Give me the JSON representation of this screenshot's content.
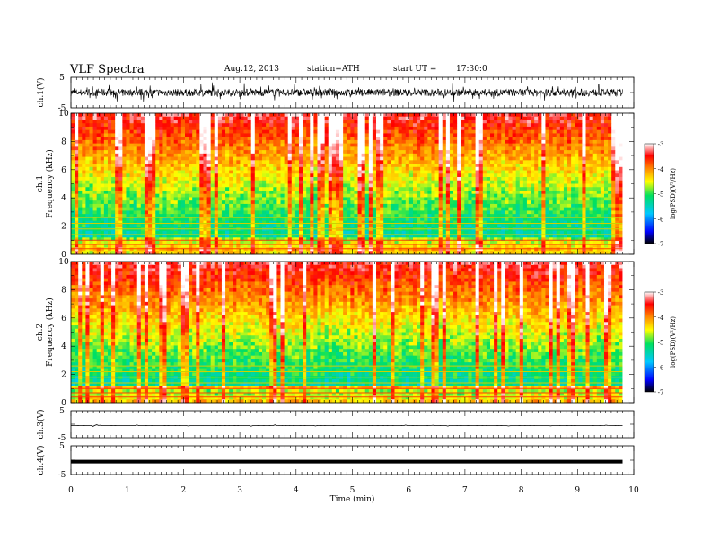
{
  "header": {
    "title": "VLF  Spectra",
    "date": "Aug.12, 2013",
    "station": "station=ATH",
    "start_label": "start  UT  =",
    "start_time": "17:30:0"
  },
  "chart_data": [
    {
      "type": "line",
      "ylabel": "ch.1(V)",
      "ylim": [
        -5,
        5
      ],
      "y_ticks": [
        "5",
        "-5"
      ],
      "xlim": [
        0,
        10
      ],
      "trace": {
        "baseline": 0,
        "amplitude": 1.2,
        "noise": "high"
      }
    },
    {
      "type": "heatmap",
      "ylabel_line1": "ch.1",
      "ylabel_line2": "Frequency  (kHz)",
      "ylim": [
        0,
        10
      ],
      "y_ticks": [
        "0",
        "2",
        "4",
        "6",
        "8",
        "10"
      ],
      "xlim": [
        0,
        10
      ],
      "data_end_min": 9.8,
      "colorbar": {
        "label": "log(PSD)(V²/Hz)",
        "range": [
          -7,
          -3
        ],
        "ticks": [
          "-3",
          "-4",
          "-5",
          "-6",
          "-7"
        ]
      }
    },
    {
      "type": "heatmap",
      "ylabel_line1": "ch.2",
      "ylabel_line2": "Frequency  (kHz)",
      "ylim": [
        0,
        10
      ],
      "y_ticks": [
        "0",
        "2",
        "4",
        "6",
        "8",
        "10"
      ],
      "xlim": [
        0,
        10
      ],
      "data_end_min": 9.8,
      "colorbar": {
        "label": "log(PSD)(V²/Hz)",
        "range": [
          -7,
          -3
        ],
        "ticks": [
          "-3",
          "-4",
          "-5",
          "-6",
          "-7"
        ]
      }
    },
    {
      "type": "line",
      "ylabel": "ch.3(V)",
      "ylim": [
        -5,
        5
      ],
      "y_ticks": [
        "5",
        "-5"
      ],
      "xlim": [
        0,
        10
      ],
      "trace": {
        "baseline": -0.5,
        "amplitude": 0.05,
        "noise": "low"
      }
    },
    {
      "type": "line",
      "ylabel": "ch.4(V)",
      "ylim": [
        -5,
        5
      ],
      "y_ticks": [
        "5",
        "-5"
      ],
      "xlim": [
        0,
        10
      ],
      "trace": {
        "baseline": -0.5,
        "amplitude": 0.0,
        "noise": "flat",
        "thick": true
      }
    }
  ],
  "x_axis": {
    "label": "Time  (min)",
    "ticks": [
      "0",
      "1",
      "2",
      "3",
      "4",
      "5",
      "6",
      "7",
      "8",
      "9",
      "10"
    ]
  }
}
